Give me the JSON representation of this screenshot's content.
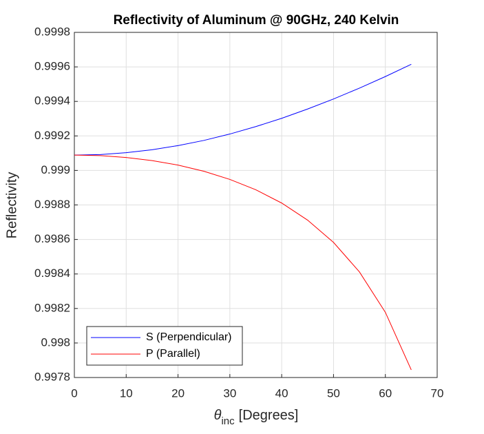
{
  "chart_data": {
    "type": "line",
    "title": "Reflectivity of Aluminum @ 90GHz, 240 Kelvin",
    "ylabel": "Reflectivity",
    "xlabel": {
      "symbol": "θ",
      "subscript": "inc",
      "text": "[Degrees]"
    },
    "x": [
      0,
      5,
      10,
      15,
      20,
      25,
      30,
      35,
      40,
      45,
      50,
      55,
      60,
      65
    ],
    "series": [
      {
        "name": "S (Perpendicular)",
        "color": "#0000ff",
        "values": [
          0.999089,
          0.999092,
          0.999103,
          0.99912,
          0.999144,
          0.999174,
          0.999211,
          0.999254,
          0.999302,
          0.999356,
          0.999414,
          0.999477,
          0.999544,
          0.999615
        ]
      },
      {
        "name": "P (Parallel)",
        "color": "#ff0000",
        "values": [
          0.999089,
          0.999086,
          0.999075,
          0.999057,
          0.999031,
          0.998995,
          0.998948,
          0.998888,
          0.998811,
          0.998712,
          0.998583,
          0.998412,
          0.998178,
          0.997844
        ]
      }
    ],
    "xlim": [
      0,
      70
    ],
    "xticks": [
      0,
      10,
      20,
      30,
      40,
      50,
      60,
      70
    ],
    "ylim": [
      0.9978,
      0.9998
    ],
    "yticks": [
      0.9978,
      0.998,
      0.9982,
      0.9984,
      0.9986,
      0.9988,
      0.999,
      0.9992,
      0.9994,
      0.9996,
      0.9998
    ],
    "grid": true,
    "legend": "lower-left"
  }
}
